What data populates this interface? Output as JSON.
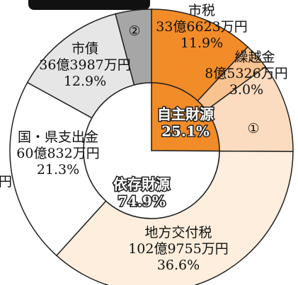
{
  "chart_data": {
    "type": "donut",
    "categories": [
      "市税",
      "繰越金",
      "①",
      "地方交付税",
      "国・県支出金",
      "市債",
      "②"
    ],
    "values": [
      11.9,
      3.0,
      10.2,
      36.6,
      21.3,
      12.9,
      4.1
    ],
    "value_labels": [
      "11.9%",
      "3.0%",
      null,
      "36.6%",
      "21.3%",
      "12.9%",
      null
    ],
    "amounts": [
      "33億6623万円",
      "8億5326万円",
      null,
      "102億9755万円",
      "60億832万円",
      "36億3987万円",
      null
    ],
    "colors": [
      "#f28c28",
      "#f9c38f",
      "#fcdcc0",
      "#fdeedd",
      "#ffffff",
      "#e6e6e6",
      "#a6a6a6"
    ],
    "inner": {
      "categories": [
        "自主財源",
        "依存財源"
      ],
      "values": [
        25.1,
        74.9
      ],
      "value_labels": [
        "25.1%",
        "74.9%"
      ],
      "colors": [
        "#f28c28",
        "#ffffff"
      ]
    },
    "annotations": [
      "円"
    ]
  }
}
